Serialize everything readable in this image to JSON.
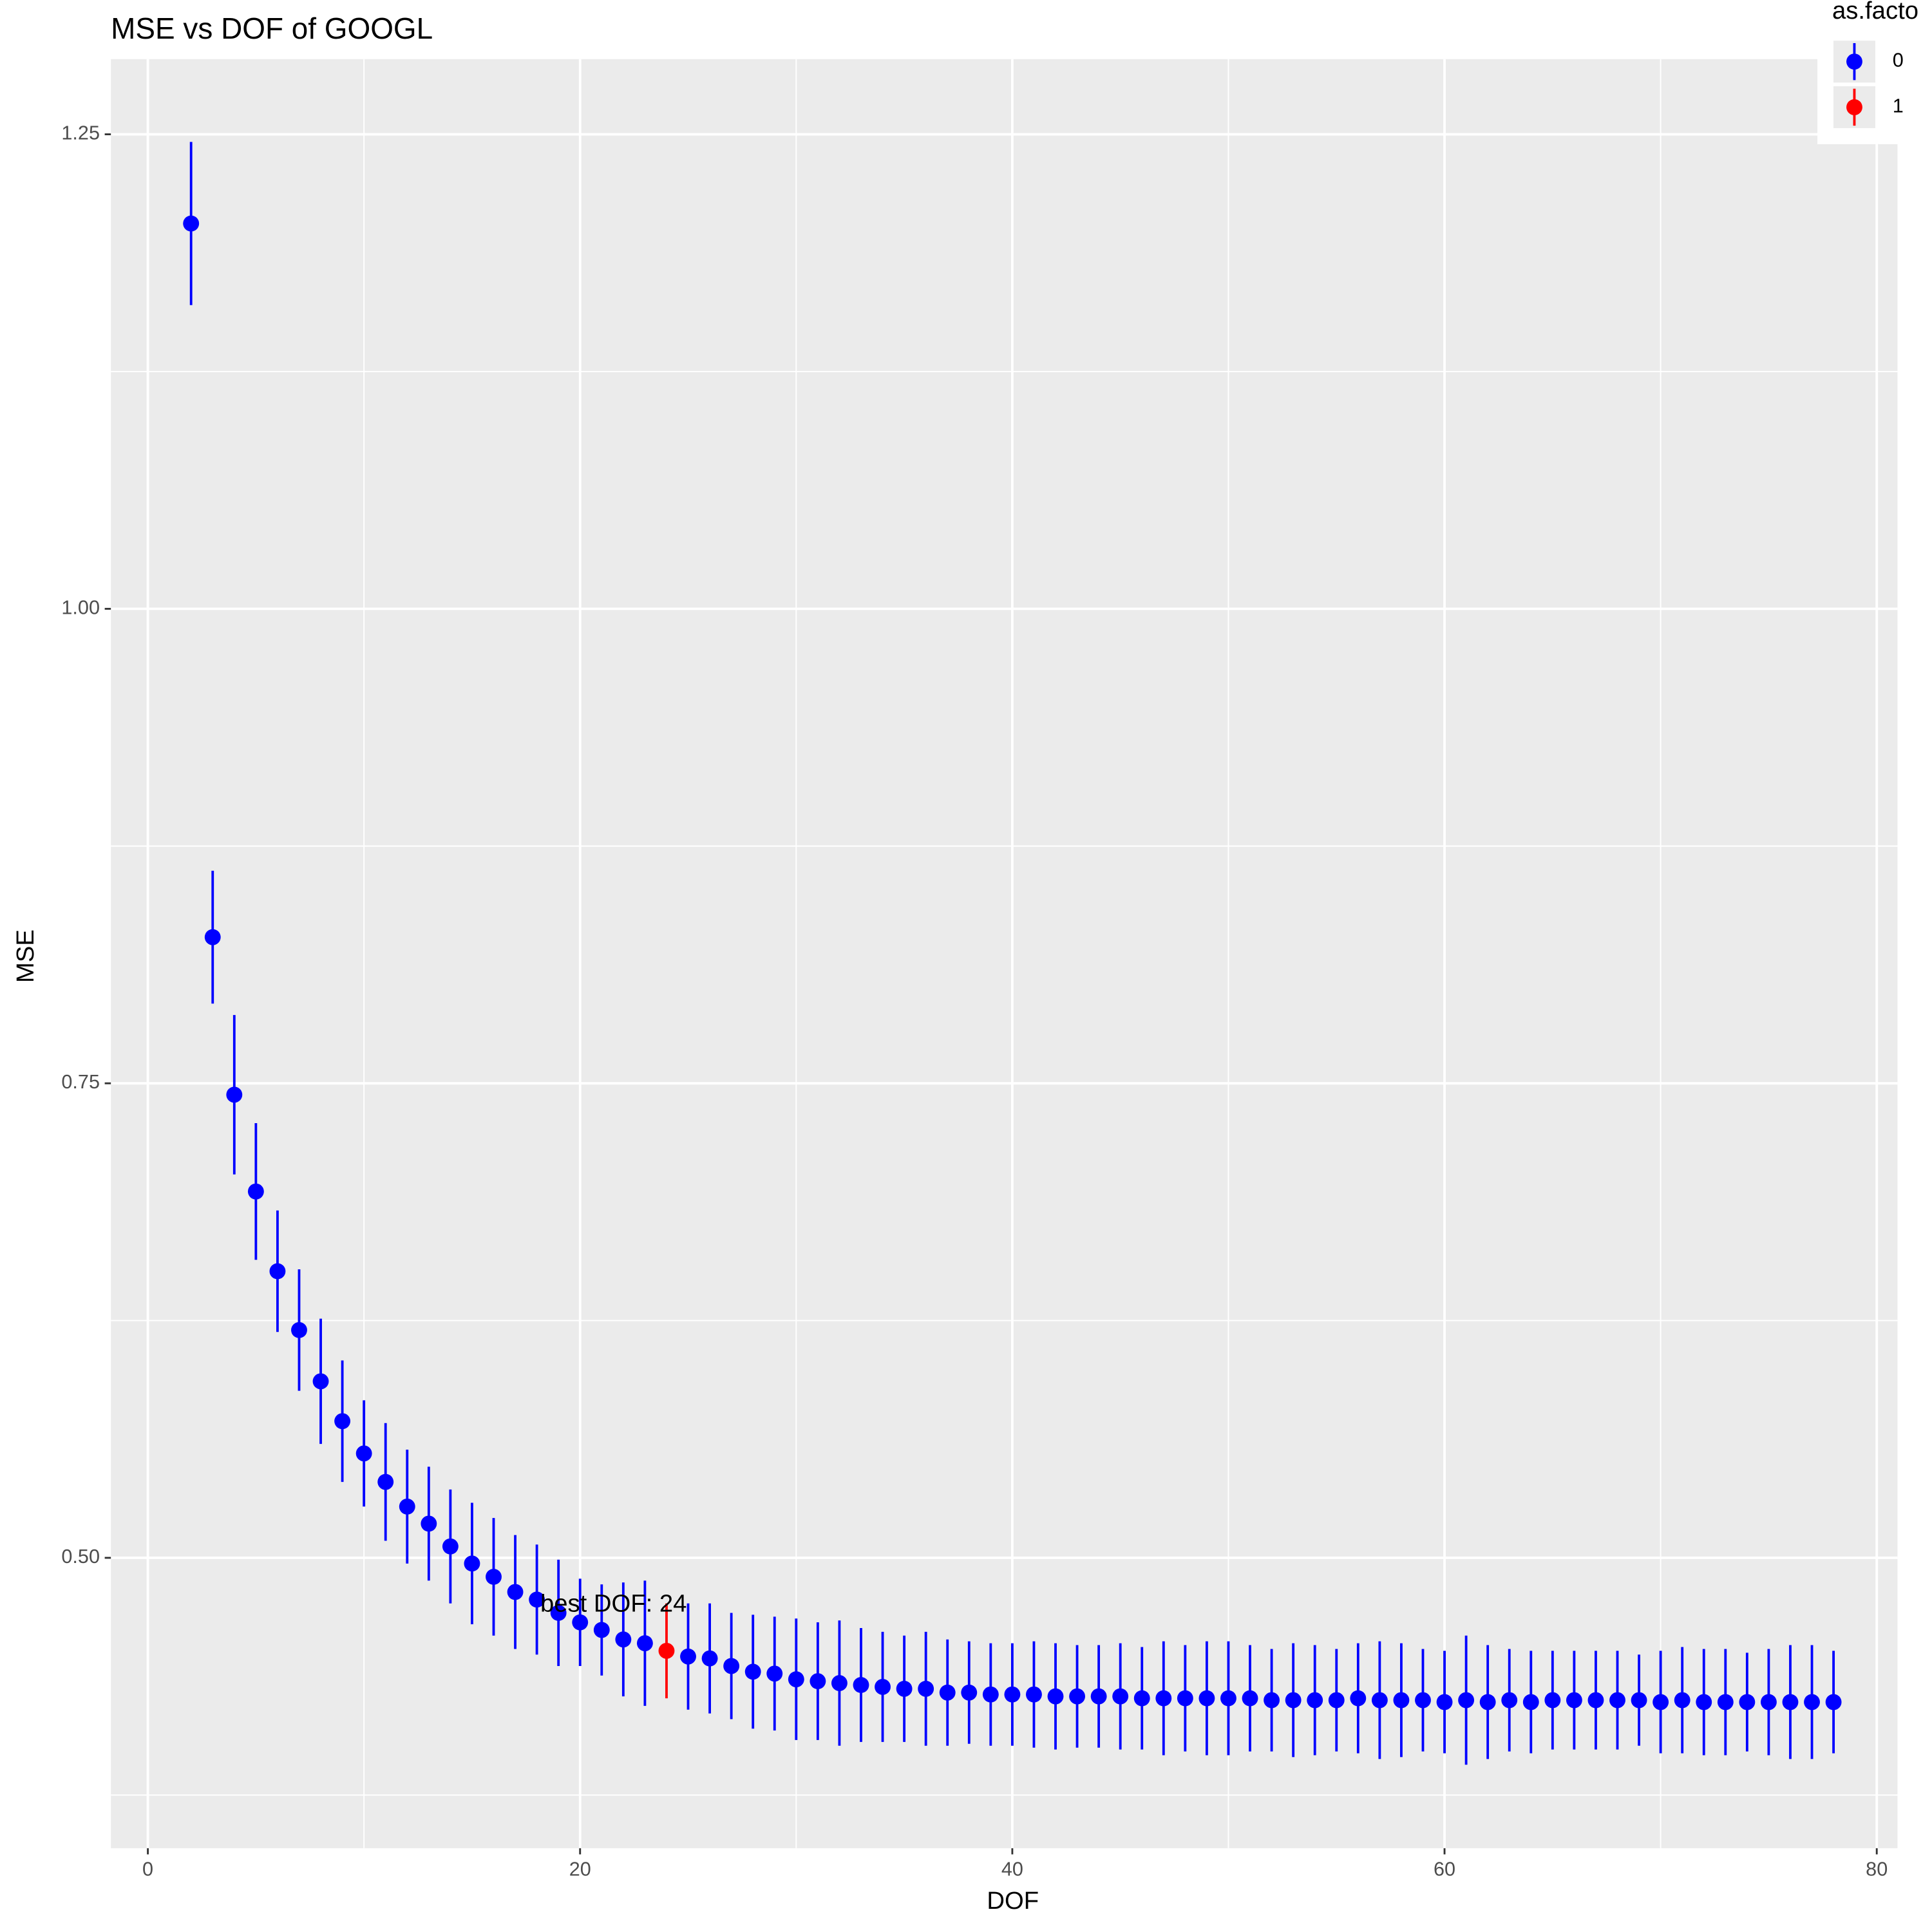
{
  "chart_data": {
    "type": "errorbar",
    "title": "MSE vs DOF of  GOOGL",
    "x_label": "DOF",
    "y_label": "MSE",
    "legend_title": "as.facto",
    "legend_position": "top-right",
    "annotation": {
      "text": "best DOF: 24",
      "x": 24,
      "y": 0.475
    },
    "xlim": [
      -1.71,
      80.96
    ],
    "ylim": [
      0.347,
      1.2896
    ],
    "xticks": [
      0,
      20,
      40,
      60,
      80
    ],
    "yticks": [
      {
        "value": 0.5,
        "label": "0.50"
      },
      {
        "value": 0.75,
        "label": "0.75"
      },
      {
        "value": 1.0,
        "label": "1.00"
      },
      {
        "value": 1.25,
        "label": "1.25"
      }
    ],
    "grid": true,
    "series": [
      {
        "name": "0",
        "color": "#0000ff",
        "x": [
          2,
          3,
          4,
          5,
          6,
          7,
          8,
          9,
          10,
          11,
          12,
          13,
          14,
          15,
          16,
          17,
          18,
          19,
          20,
          21,
          22,
          23,
          25,
          26,
          27,
          28,
          29,
          30,
          31,
          32,
          33,
          34,
          35,
          36,
          37,
          38,
          39,
          40,
          41,
          42,
          43,
          44,
          45,
          46,
          47,
          48,
          49,
          50,
          51,
          52,
          53,
          54,
          55,
          56,
          57,
          58,
          59,
          60,
          61,
          62,
          63,
          64,
          65,
          66,
          67,
          68,
          69,
          70,
          71,
          72,
          73,
          74,
          75,
          76,
          77,
          78
        ],
        "values": [
          1.203,
          0.827,
          0.744,
          0.693,
          0.651,
          0.62,
          0.593,
          0.572,
          0.555,
          0.54,
          0.527,
          0.518,
          0.506,
          0.497,
          0.49,
          0.482,
          0.478,
          0.471,
          0.466,
          0.462,
          0.457,
          0.455,
          0.448,
          0.447,
          0.443,
          0.44,
          0.439,
          0.436,
          0.435,
          0.434,
          0.433,
          0.432,
          0.431,
          0.431,
          0.429,
          0.429,
          0.428,
          0.428,
          0.428,
          0.427,
          0.427,
          0.427,
          0.427,
          0.426,
          0.426,
          0.426,
          0.426,
          0.426,
          0.426,
          0.425,
          0.425,
          0.425,
          0.425,
          0.426,
          0.425,
          0.425,
          0.425,
          0.424,
          0.425,
          0.424,
          0.425,
          0.424,
          0.425,
          0.425,
          0.425,
          0.425,
          0.425,
          0.424,
          0.425,
          0.424,
          0.424,
          0.424,
          0.424,
          0.424,
          0.424,
          0.424
        ],
        "errors": [
          0.043,
          0.035,
          0.042,
          0.036,
          0.032,
          0.032,
          0.033,
          0.032,
          0.028,
          0.031,
          0.03,
          0.03,
          0.03,
          0.032,
          0.031,
          0.03,
          0.029,
          0.028,
          0.023,
          0.024,
          0.03,
          0.033,
          0.028,
          0.029,
          0.028,
          0.03,
          0.03,
          0.032,
          0.031,
          0.033,
          0.03,
          0.029,
          0.028,
          0.03,
          0.028,
          0.027,
          0.027,
          0.027,
          0.028,
          0.028,
          0.027,
          0.027,
          0.028,
          0.027,
          0.03,
          0.028,
          0.03,
          0.03,
          0.028,
          0.027,
          0.03,
          0.029,
          0.027,
          0.029,
          0.031,
          0.03,
          0.027,
          0.027,
          0.034,
          0.03,
          0.027,
          0.027,
          0.026,
          0.026,
          0.026,
          0.026,
          0.024,
          0.027,
          0.028,
          0.028,
          0.028,
          0.026,
          0.028,
          0.03,
          0.03,
          0.027
        ]
      },
      {
        "name": "1",
        "color": "#ff0000",
        "x": [
          24
        ],
        "values": [
          0.451
        ],
        "errors": [
          0.025
        ]
      }
    ]
  }
}
